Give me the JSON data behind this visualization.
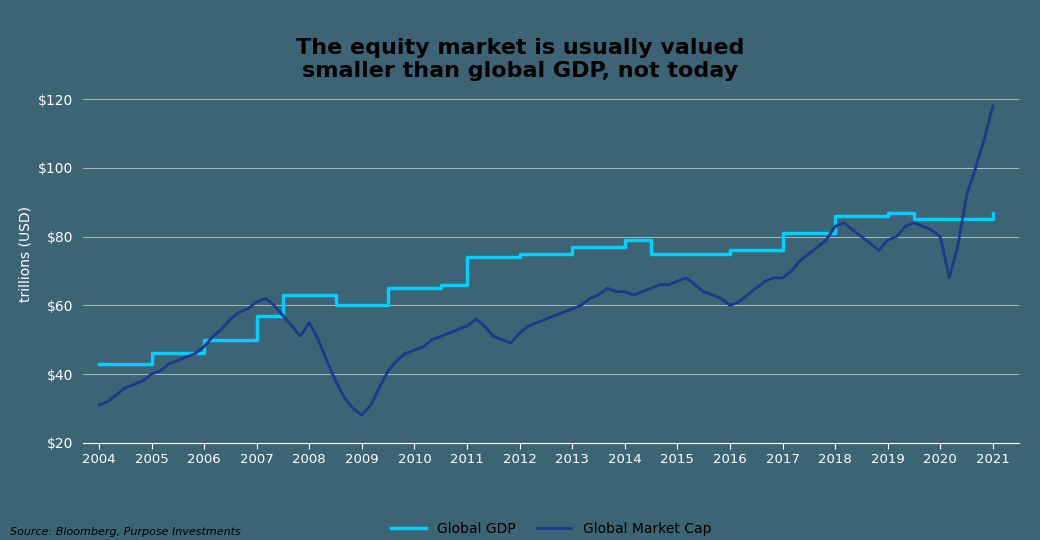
{
  "title": "The equity market is usually valued\nsmaller than global GDP, not today",
  "ylabel": "trillions (USD)",
  "source": "Source: Bloomberg, Purpose Investments",
  "background_color": "#3d6475",
  "title_color": "#000000",
  "gdp_color": "#00cfff",
  "mktcap_color": "#1a3a8c",
  "ylim": [
    20,
    130
  ],
  "yticks": [
    20,
    40,
    60,
    80,
    100,
    120
  ],
  "legend_gdp": "Global GDP",
  "legend_mktcap": "Global Market Cap",
  "gdp_step_x": [
    2004,
    2005,
    2006,
    2007,
    2007.5,
    2008,
    2008.5,
    2009,
    2009.5,
    2010,
    2010.5,
    2011,
    2012,
    2013,
    2014,
    2014.5,
    2015,
    2016,
    2017,
    2018,
    2019,
    2019.5,
    2020,
    2021
  ],
  "gdp_step_y": [
    43,
    46,
    50,
    57,
    63,
    63,
    60,
    60,
    65,
    65,
    66,
    74,
    75,
    77,
    79,
    75,
    75,
    76,
    81,
    86,
    87,
    85,
    85,
    87
  ],
  "mktcap_x": [
    2004.0,
    2004.17,
    2004.33,
    2004.5,
    2004.67,
    2004.83,
    2005.0,
    2005.17,
    2005.33,
    2005.5,
    2005.67,
    2005.83,
    2006.0,
    2006.17,
    2006.33,
    2006.5,
    2006.67,
    2006.83,
    2007.0,
    2007.17,
    2007.33,
    2007.5,
    2007.67,
    2007.83,
    2008.0,
    2008.17,
    2008.33,
    2008.5,
    2008.67,
    2008.83,
    2009.0,
    2009.17,
    2009.33,
    2009.5,
    2009.67,
    2009.83,
    2010.0,
    2010.17,
    2010.33,
    2010.5,
    2010.67,
    2010.83,
    2011.0,
    2011.17,
    2011.33,
    2011.5,
    2011.67,
    2011.83,
    2012.0,
    2012.17,
    2012.33,
    2012.5,
    2012.67,
    2012.83,
    2013.0,
    2013.17,
    2013.33,
    2013.5,
    2013.67,
    2013.83,
    2014.0,
    2014.17,
    2014.33,
    2014.5,
    2014.67,
    2014.83,
    2015.0,
    2015.17,
    2015.33,
    2015.5,
    2015.67,
    2015.83,
    2016.0,
    2016.17,
    2016.33,
    2016.5,
    2016.67,
    2016.83,
    2017.0,
    2017.17,
    2017.33,
    2017.5,
    2017.67,
    2017.83,
    2018.0,
    2018.17,
    2018.33,
    2018.5,
    2018.67,
    2018.83,
    2019.0,
    2019.17,
    2019.33,
    2019.5,
    2019.67,
    2019.83,
    2020.0,
    2020.17,
    2020.33,
    2020.5,
    2020.67,
    2020.83,
    2021.0
  ],
  "mktcap_y": [
    31,
    32,
    34,
    36,
    37,
    38,
    40,
    41,
    43,
    44,
    45,
    46,
    48,
    51,
    53,
    56,
    58,
    59,
    61,
    62,
    60,
    57,
    54,
    51,
    55,
    50,
    44,
    38,
    33,
    30,
    28,
    31,
    36,
    41,
    44,
    46,
    47,
    48,
    50,
    51,
    52,
    53,
    54,
    56,
    54,
    51,
    50,
    49,
    52,
    54,
    55,
    56,
    57,
    58,
    59,
    60,
    62,
    63,
    65,
    64,
    64,
    63,
    64,
    65,
    66,
    66,
    67,
    68,
    66,
    64,
    63,
    62,
    60,
    61,
    63,
    65,
    67,
    68,
    68,
    70,
    73,
    75,
    77,
    79,
    83,
    84,
    82,
    80,
    78,
    76,
    79,
    80,
    83,
    84,
    83,
    82,
    80,
    68,
    77,
    92,
    100,
    108,
    118
  ]
}
